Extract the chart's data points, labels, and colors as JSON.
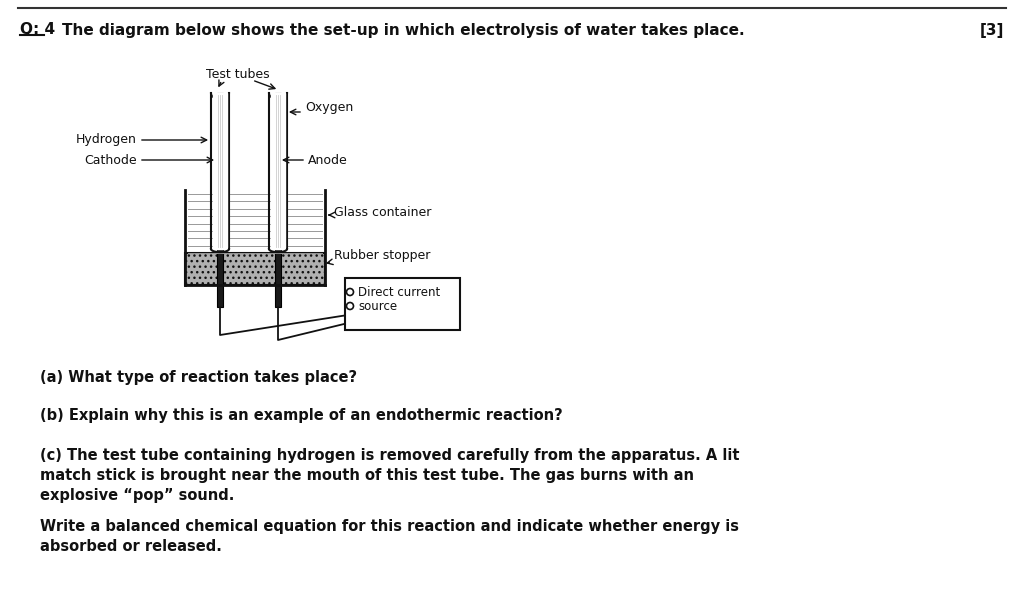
{
  "title_question": "Q: 4",
  "title_text": "The diagram below shows the set-up in which electrolysis of water takes place.",
  "title_marks": "[3]",
  "bg_color": "#ffffff",
  "text_color": "#111111",
  "questions": [
    "(a) What type of reaction takes place?",
    "(b) Explain why this is an example of an endothermic reaction?",
    "(c) The test tube containing hydrogen is removed carefully from the apparatus. A lit\nmatch stick is brought near the mouth of this test tube. The gas burns with an\nexplosive “pop” sound.",
    "Write a balanced chemical equation for this reaction and indicate whether energy is\nabsorbed or released."
  ],
  "diagram_labels": {
    "test_tubes": "Test tubes",
    "oxygen": "Oxygen",
    "hydrogen": "Hydrogen",
    "cathode": "Cathode",
    "anode": "Anode",
    "glass_container": "Glass container",
    "rubber_stopper": "Rubber stopper",
    "dc_source_line1": "Direct current",
    "dc_source_line2": "source"
  }
}
